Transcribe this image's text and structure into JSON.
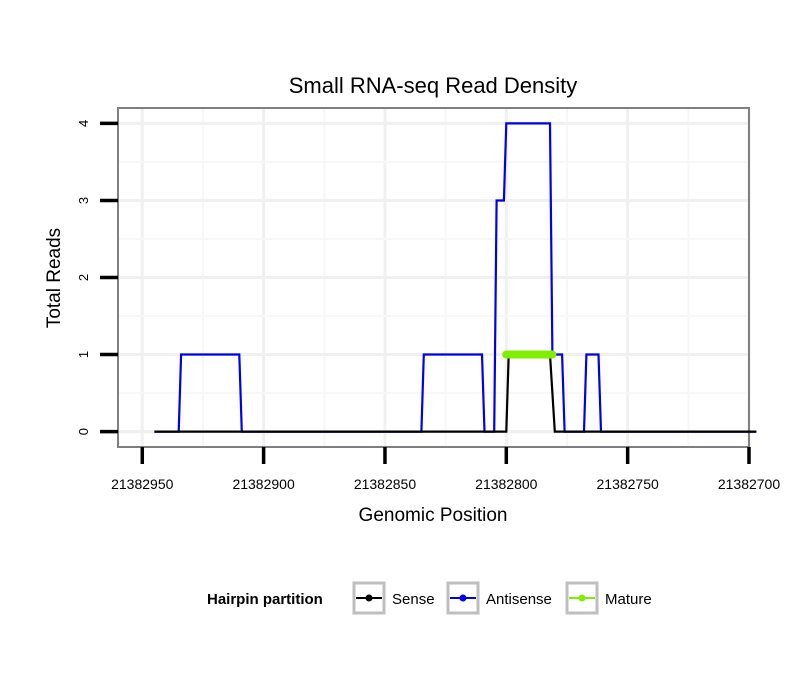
{
  "chart_data": {
    "type": "line",
    "title": "Small RNA-seq Read Density",
    "xlabel": "Genomic Position",
    "ylabel": "Total Reads",
    "xlim": [
      21382960,
      21382700
    ],
    "ylim": [
      -0.2,
      4.2
    ],
    "x_reversed": true,
    "xticks": [
      21382950,
      21382900,
      21382850,
      21382800,
      21382750,
      21382700
    ],
    "xtick_labels": [
      "21382950",
      "21382900",
      "21382850",
      "21382800",
      "21382750",
      "21382700"
    ],
    "yticks": [
      0,
      1,
      2,
      3,
      4
    ],
    "ytick_labels": [
      "0",
      "1",
      "2",
      "3",
      "4"
    ],
    "grid": true,
    "legend": {
      "title": "Hairpin partition",
      "position": "bottom",
      "entries": [
        "Sense",
        "Antisense",
        "Mature"
      ]
    },
    "series": [
      {
        "name": "Sense",
        "color": "#000000",
        "x": [
          21382945,
          21382800,
          21382799,
          21382782,
          21382780,
          21382697
        ],
        "y": [
          0,
          0,
          1,
          1,
          0,
          0
        ]
      },
      {
        "name": "Antisense",
        "color": "#0000ee",
        "x": [
          21382945,
          21382935,
          21382934,
          21382910,
          21382909,
          21382835,
          21382834,
          21382810,
          21382809,
          21382805,
          21382804,
          21382801,
          21382800,
          21382798,
          21382797,
          21382782,
          21382781,
          21382777,
          21382776,
          21382768,
          21382767,
          21382762,
          21382761,
          21382742,
          21382741,
          21382697
        ],
        "y": [
          0,
          0,
          1,
          1,
          0,
          0,
          1,
          1,
          0,
          0,
          3,
          3,
          4,
          4,
          4,
          4,
          1,
          1,
          0,
          0,
          1,
          1,
          0,
          0,
          0,
          0
        ]
      },
      {
        "name": "Mature",
        "color": "#7fee00",
        "x": [
          21382800,
          21382781
        ],
        "y": [
          1,
          1
        ]
      }
    ]
  }
}
